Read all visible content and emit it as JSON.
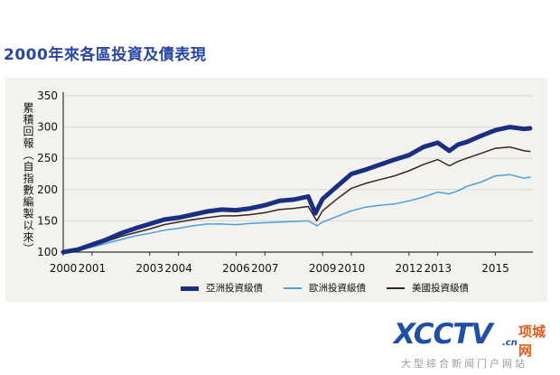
{
  "page": {
    "title": "2000年來各區投資及債表現"
  },
  "chart_data": {
    "type": "line",
    "title": "2000年來各區投資及債表現",
    "xlabel": "",
    "ylabel": "累積回報（自指數編製以來）",
    "xlim": [
      2000,
      2016.3
    ],
    "ylim": [
      100,
      350
    ],
    "xticks": [
      2000,
      2001,
      2003,
      2004,
      2006,
      2007,
      2009,
      2010,
      2012,
      2013,
      2015
    ],
    "yticks": [
      100,
      150,
      200,
      250,
      300,
      350
    ],
    "grid": true,
    "legend_position": "bottom",
    "series": [
      {
        "name": "亞洲投資級債",
        "color": "#1a2f82",
        "points": [
          [
            2000,
            100
          ],
          [
            2000.5,
            104
          ],
          [
            2001,
            112
          ],
          [
            2001.5,
            120
          ],
          [
            2002,
            130
          ],
          [
            2002.5,
            138
          ],
          [
            2003,
            145
          ],
          [
            2003.5,
            152
          ],
          [
            2004,
            155
          ],
          [
            2004.5,
            160
          ],
          [
            2005,
            165
          ],
          [
            2005.5,
            168
          ],
          [
            2006,
            167
          ],
          [
            2006.5,
            170
          ],
          [
            2007,
            175
          ],
          [
            2007.5,
            182
          ],
          [
            2008,
            184
          ],
          [
            2008.5,
            189
          ],
          [
            2008.75,
            162
          ],
          [
            2009,
            185
          ],
          [
            2009.5,
            205
          ],
          [
            2010,
            225
          ],
          [
            2010.5,
            232
          ],
          [
            2011,
            240
          ],
          [
            2011.5,
            248
          ],
          [
            2012,
            255
          ],
          [
            2012.5,
            268
          ],
          [
            2013,
            275
          ],
          [
            2013.4,
            262
          ],
          [
            2013.7,
            272
          ],
          [
            2014,
            276
          ],
          [
            2014.5,
            286
          ],
          [
            2015,
            295
          ],
          [
            2015.5,
            300
          ],
          [
            2016,
            297
          ],
          [
            2016.2,
            298
          ]
        ]
      },
      {
        "name": "歐洲投資級債",
        "color": "#4a9fde",
        "points": [
          [
            2000,
            100
          ],
          [
            2000.5,
            103
          ],
          [
            2001,
            108
          ],
          [
            2001.5,
            114
          ],
          [
            2002,
            120
          ],
          [
            2002.5,
            126
          ],
          [
            2003,
            130
          ],
          [
            2003.5,
            135
          ],
          [
            2004,
            138
          ],
          [
            2004.5,
            142
          ],
          [
            2005,
            145
          ],
          [
            2005.5,
            145
          ],
          [
            2006,
            144
          ],
          [
            2006.5,
            146
          ],
          [
            2007,
            147
          ],
          [
            2007.5,
            148
          ],
          [
            2008,
            149
          ],
          [
            2008.5,
            150
          ],
          [
            2008.8,
            142
          ],
          [
            2009,
            148
          ],
          [
            2009.5,
            157
          ],
          [
            2010,
            166
          ],
          [
            2010.5,
            172
          ],
          [
            2011,
            175
          ],
          [
            2011.5,
            177
          ],
          [
            2012,
            182
          ],
          [
            2012.5,
            188
          ],
          [
            2013,
            196
          ],
          [
            2013.4,
            193
          ],
          [
            2013.7,
            198
          ],
          [
            2014,
            205
          ],
          [
            2014.5,
            212
          ],
          [
            2015,
            222
          ],
          [
            2015.5,
            224
          ],
          [
            2016,
            218
          ],
          [
            2016.2,
            220
          ]
        ]
      },
      {
        "name": "美國投資級債",
        "color": "#3a2418",
        "points": [
          [
            2000,
            100
          ],
          [
            2000.5,
            103
          ],
          [
            2001,
            110
          ],
          [
            2001.5,
            117
          ],
          [
            2002,
            125
          ],
          [
            2002.5,
            131
          ],
          [
            2003,
            137
          ],
          [
            2003.5,
            144
          ],
          [
            2004,
            148
          ],
          [
            2004.5,
            152
          ],
          [
            2005,
            155
          ],
          [
            2005.5,
            158
          ],
          [
            2006,
            158
          ],
          [
            2006.5,
            160
          ],
          [
            2007,
            163
          ],
          [
            2007.5,
            168
          ],
          [
            2008,
            170
          ],
          [
            2008.5,
            173
          ],
          [
            2008.8,
            150
          ],
          [
            2009,
            166
          ],
          [
            2009.5,
            185
          ],
          [
            2010,
            202
          ],
          [
            2010.5,
            210
          ],
          [
            2011,
            216
          ],
          [
            2011.5,
            222
          ],
          [
            2012,
            230
          ],
          [
            2012.5,
            240
          ],
          [
            2013,
            248
          ],
          [
            2013.4,
            238
          ],
          [
            2013.7,
            245
          ],
          [
            2014,
            250
          ],
          [
            2014.5,
            258
          ],
          [
            2015,
            266
          ],
          [
            2015.5,
            268
          ],
          [
            2016,
            262
          ],
          [
            2016.2,
            261
          ]
        ]
      }
    ]
  },
  "watermark": {
    "logo": "XCCTV",
    "domain_suffix": ".cn",
    "brand": "项城网",
    "slogan": "大型综合新闻门户网站"
  }
}
